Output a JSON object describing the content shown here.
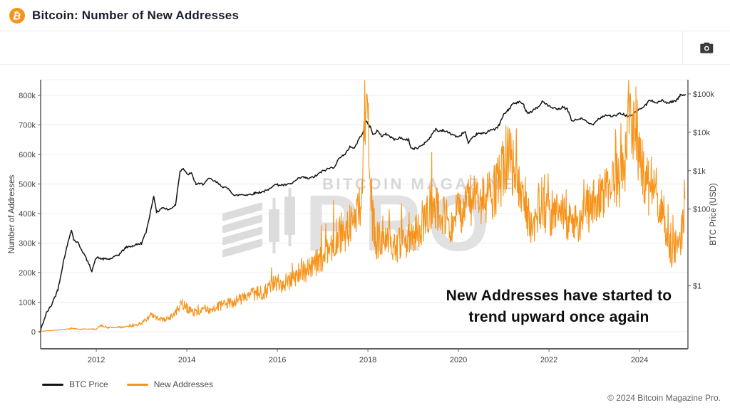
{
  "colors": {
    "accent": "#F7931A",
    "price_line": "#141414",
    "addresses_line": "#F7931A",
    "watermark": "#dcdcdc",
    "grid": "#ececec",
    "axis": "#5a5c61"
  },
  "header": {
    "icon_glyph": "₿",
    "title": "Bitcoin: Number of New Addresses"
  },
  "watermark": {
    "line1": "BITCOIN MAGAZINE",
    "line2": "PRO"
  },
  "annotation": {
    "line1": "New Addresses have started to",
    "line2": "trend upward once again"
  },
  "legend": {
    "items": [
      {
        "label": "BTC Price",
        "color": "#141414"
      },
      {
        "label": "New Addresses",
        "color": "#F7931A"
      }
    ]
  },
  "footer": {
    "copyright": "© 2024 Bitcoin Magazine Pro."
  },
  "chart_data": {
    "type": "line",
    "title": "Bitcoin: Number of New Addresses",
    "grid": "horizontal",
    "legend_position": "bottom-left",
    "x_axis": {
      "range": [
        2010.77,
        2025.07
      ],
      "ticks": [
        {
          "label": "2012",
          "value": 2012
        },
        {
          "label": "2014",
          "value": 2014
        },
        {
          "label": "2016",
          "value": 2016
        },
        {
          "label": "2018",
          "value": 2018
        },
        {
          "label": "2020",
          "value": 2020
        },
        {
          "label": "2022",
          "value": 2022
        },
        {
          "label": "2024",
          "value": 2024
        }
      ]
    },
    "y_axis_left": {
      "label": "Number of Addresses",
      "scale": "linear",
      "range": [
        -57800,
        853000
      ],
      "ticks": [
        {
          "label": "0",
          "value": 0
        },
        {
          "label": "100k",
          "value": 100000
        },
        {
          "label": "200k",
          "value": 200000
        },
        {
          "label": "300k",
          "value": 300000
        },
        {
          "label": "400k",
          "value": 400000
        },
        {
          "label": "500k",
          "value": 500000
        },
        {
          "label": "600k",
          "value": 600000
        },
        {
          "label": "700k",
          "value": 700000
        },
        {
          "label": "800k",
          "value": 800000
        }
      ]
    },
    "y_axis_right": {
      "label": "BTC Price (USD)",
      "scale": "log",
      "range": [
        0.023,
        234000
      ],
      "ticks": [
        {
          "label": "$1",
          "value": 1
        },
        {
          "label": "$100",
          "value": 100
        },
        {
          "label": "$1k",
          "value": 1000
        },
        {
          "label": "$10k",
          "value": 10000
        },
        {
          "label": "$100k",
          "value": 100000
        }
      ]
    },
    "series": [
      {
        "name": "BTC Price",
        "axis": "right",
        "color": "#141414",
        "points": [
          [
            2010.75,
            0.06
          ],
          [
            2010.9,
            0.2
          ],
          [
            2011.0,
            0.3
          ],
          [
            2011.15,
            0.8
          ],
          [
            2011.3,
            6
          ],
          [
            2011.45,
            30
          ],
          [
            2011.5,
            16
          ],
          [
            2011.6,
            13
          ],
          [
            2011.75,
            6
          ],
          [
            2011.9,
            2.5
          ],
          [
            2012.0,
            5.5
          ],
          [
            2012.15,
            5
          ],
          [
            2012.3,
            5
          ],
          [
            2012.5,
            6.5
          ],
          [
            2012.65,
            10
          ],
          [
            2012.8,
            11
          ],
          [
            2013.0,
            13
          ],
          [
            2013.1,
            25
          ],
          [
            2013.2,
            90
          ],
          [
            2013.27,
            230
          ],
          [
            2013.33,
            80
          ],
          [
            2013.45,
            110
          ],
          [
            2013.6,
            95
          ],
          [
            2013.75,
            130
          ],
          [
            2013.85,
            1000
          ],
          [
            2013.92,
            1150
          ],
          [
            2014.0,
            800
          ],
          [
            2014.1,
            850
          ],
          [
            2014.2,
            450
          ],
          [
            2014.35,
            450
          ],
          [
            2014.5,
            620
          ],
          [
            2014.65,
            500
          ],
          [
            2014.8,
            380
          ],
          [
            2014.95,
            320
          ],
          [
            2015.05,
            220
          ],
          [
            2015.2,
            240
          ],
          [
            2015.35,
            235
          ],
          [
            2015.5,
            260
          ],
          [
            2015.65,
            280
          ],
          [
            2015.8,
            310
          ],
          [
            2015.9,
            420
          ],
          [
            2016.0,
            430
          ],
          [
            2016.15,
            420
          ],
          [
            2016.3,
            450
          ],
          [
            2016.45,
            600
          ],
          [
            2016.55,
            680
          ],
          [
            2016.7,
            620
          ],
          [
            2016.85,
            730
          ],
          [
            2017.0,
            980
          ],
          [
            2017.15,
            1150
          ],
          [
            2017.25,
            1250
          ],
          [
            2017.4,
            2400
          ],
          [
            2017.5,
            2600
          ],
          [
            2017.6,
            4300
          ],
          [
            2017.7,
            3900
          ],
          [
            2017.8,
            6500
          ],
          [
            2017.9,
            11000
          ],
          [
            2017.96,
            19500
          ],
          [
            2018.05,
            14000
          ],
          [
            2018.12,
            8500
          ],
          [
            2018.2,
            11000
          ],
          [
            2018.3,
            8000
          ],
          [
            2018.4,
            9200
          ],
          [
            2018.5,
            7500
          ],
          [
            2018.6,
            6400
          ],
          [
            2018.7,
            7300
          ],
          [
            2018.8,
            6500
          ],
          [
            2018.9,
            6400
          ],
          [
            2018.95,
            3900
          ],
          [
            2019.0,
            3700
          ],
          [
            2019.1,
            3900
          ],
          [
            2019.25,
            5200
          ],
          [
            2019.4,
            8000
          ],
          [
            2019.5,
            12500
          ],
          [
            2019.55,
            10500
          ],
          [
            2019.65,
            11500
          ],
          [
            2019.8,
            9500
          ],
          [
            2019.9,
            8500
          ],
          [
            2020.0,
            7200
          ],
          [
            2020.1,
            9800
          ],
          [
            2020.15,
            10200
          ],
          [
            2020.22,
            5000
          ],
          [
            2020.3,
            6800
          ],
          [
            2020.4,
            9000
          ],
          [
            2020.5,
            9200
          ],
          [
            2020.6,
            9500
          ],
          [
            2020.7,
            11800
          ],
          [
            2020.8,
            11500
          ],
          [
            2020.9,
            15500
          ],
          [
            2021.0,
            29000
          ],
          [
            2021.05,
            33000
          ],
          [
            2021.1,
            38000
          ],
          [
            2021.2,
            55000
          ],
          [
            2021.3,
            59000
          ],
          [
            2021.35,
            63000
          ],
          [
            2021.45,
            50000
          ],
          [
            2021.5,
            35000
          ],
          [
            2021.55,
            33000
          ],
          [
            2021.6,
            34000
          ],
          [
            2021.7,
            42000
          ],
          [
            2021.8,
            48000
          ],
          [
            2021.85,
            65000
          ],
          [
            2021.9,
            60000
          ],
          [
            2022.0,
            47000
          ],
          [
            2022.1,
            42000
          ],
          [
            2022.2,
            39000
          ],
          [
            2022.3,
            45000
          ],
          [
            2022.4,
            40000
          ],
          [
            2022.45,
            30000
          ],
          [
            2022.5,
            20000
          ],
          [
            2022.6,
            21000
          ],
          [
            2022.7,
            23000
          ],
          [
            2022.8,
            20000
          ],
          [
            2022.9,
            16500
          ],
          [
            2023.0,
            16800
          ],
          [
            2023.05,
            21000
          ],
          [
            2023.15,
            24500
          ],
          [
            2023.25,
            28000
          ],
          [
            2023.35,
            27000
          ],
          [
            2023.45,
            26500
          ],
          [
            2023.55,
            30500
          ],
          [
            2023.65,
            29500
          ],
          [
            2023.75,
            26000
          ],
          [
            2023.85,
            27500
          ],
          [
            2023.95,
            37000
          ],
          [
            2024.05,
            43000
          ],
          [
            2024.15,
            52000
          ],
          [
            2024.2,
            67000
          ],
          [
            2024.3,
            64000
          ],
          [
            2024.4,
            61000
          ],
          [
            2024.5,
            67000
          ],
          [
            2024.6,
            58000
          ],
          [
            2024.7,
            62000
          ],
          [
            2024.8,
            67000
          ],
          [
            2024.85,
            75000
          ],
          [
            2024.9,
            92000
          ],
          [
            2024.95,
            97000
          ],
          [
            2025.02,
            97000
          ]
        ]
      },
      {
        "name": "New Addresses",
        "axis": "left",
        "color": "#F7931A",
        "points": [
          [
            2010.75,
            1500
          ],
          [
            2011.0,
            4000
          ],
          [
            2011.3,
            7000
          ],
          [
            2011.45,
            12000
          ],
          [
            2011.6,
            8000
          ],
          [
            2012.0,
            9000
          ],
          [
            2012.1,
            22000
          ],
          [
            2012.25,
            14000
          ],
          [
            2012.5,
            15000
          ],
          [
            2012.75,
            18000
          ],
          [
            2013.0,
            28000
          ],
          [
            2013.2,
            55000
          ],
          [
            2013.35,
            45000
          ],
          [
            2013.5,
            40000
          ],
          [
            2013.7,
            55000
          ],
          [
            2013.9,
            95000
          ],
          [
            2014.0,
            80000
          ],
          [
            2014.15,
            65000
          ],
          [
            2014.3,
            70000
          ],
          [
            2014.5,
            75000
          ],
          [
            2014.7,
            85000
          ],
          [
            2014.9,
            95000
          ],
          [
            2015.1,
            105000
          ],
          [
            2015.3,
            120000
          ],
          [
            2015.5,
            125000
          ],
          [
            2015.7,
            135000
          ],
          [
            2015.9,
            160000
          ],
          [
            2016.1,
            165000
          ],
          [
            2016.3,
            180000
          ],
          [
            2016.5,
            200000
          ],
          [
            2016.7,
            215000
          ],
          [
            2016.9,
            235000
          ],
          [
            2017.1,
            270000
          ],
          [
            2017.3,
            320000
          ],
          [
            2017.5,
            340000
          ],
          [
            2017.7,
            380000
          ],
          [
            2017.85,
            440000
          ],
          [
            2017.96,
            800000
          ],
          [
            2018.02,
            620000
          ],
          [
            2018.1,
            380000
          ],
          [
            2018.2,
            300000
          ],
          [
            2018.35,
            330000
          ],
          [
            2018.5,
            310000
          ],
          [
            2018.65,
            290000
          ],
          [
            2018.8,
            300000
          ],
          [
            2019.0,
            320000
          ],
          [
            2019.2,
            370000
          ],
          [
            2019.4,
            420000
          ],
          [
            2019.55,
            430000
          ],
          [
            2019.7,
            390000
          ],
          [
            2019.85,
            360000
          ],
          [
            2020.0,
            400000
          ],
          [
            2020.15,
            420000
          ],
          [
            2020.3,
            450000
          ],
          [
            2020.5,
            440000
          ],
          [
            2020.7,
            460000
          ],
          [
            2020.85,
            480000
          ],
          [
            2021.0,
            560000
          ],
          [
            2021.1,
            620000
          ],
          [
            2021.2,
            560000
          ],
          [
            2021.3,
            520000
          ],
          [
            2021.4,
            490000
          ],
          [
            2021.5,
            430000
          ],
          [
            2021.6,
            340000
          ],
          [
            2021.7,
            380000
          ],
          [
            2021.8,
            430000
          ],
          [
            2021.9,
            410000
          ],
          [
            2022.0,
            390000
          ],
          [
            2022.15,
            410000
          ],
          [
            2022.3,
            400000
          ],
          [
            2022.45,
            380000
          ],
          [
            2022.6,
            370000
          ],
          [
            2022.75,
            390000
          ],
          [
            2022.9,
            420000
          ],
          [
            2023.0,
            440000
          ],
          [
            2023.15,
            460000
          ],
          [
            2023.3,
            470000
          ],
          [
            2023.45,
            490000
          ],
          [
            2023.6,
            540000
          ],
          [
            2023.7,
            600000
          ],
          [
            2023.78,
            780000
          ],
          [
            2023.85,
            650000
          ],
          [
            2023.92,
            720000
          ],
          [
            2024.0,
            580000
          ],
          [
            2024.1,
            530000
          ],
          [
            2024.2,
            490000
          ],
          [
            2024.3,
            500000
          ],
          [
            2024.4,
            460000
          ],
          [
            2024.5,
            420000
          ],
          [
            2024.6,
            330000
          ],
          [
            2024.7,
            260000
          ],
          [
            2024.78,
            290000
          ],
          [
            2024.85,
            280000
          ],
          [
            2024.92,
            310000
          ],
          [
            2025.0,
            450000
          ]
        ]
      }
    ],
    "render_hints": {
      "price_noise": 0.07,
      "price_step_years": 0.02,
      "addresses_noise": 0.2,
      "addresses_step_years": 0.01
    }
  }
}
